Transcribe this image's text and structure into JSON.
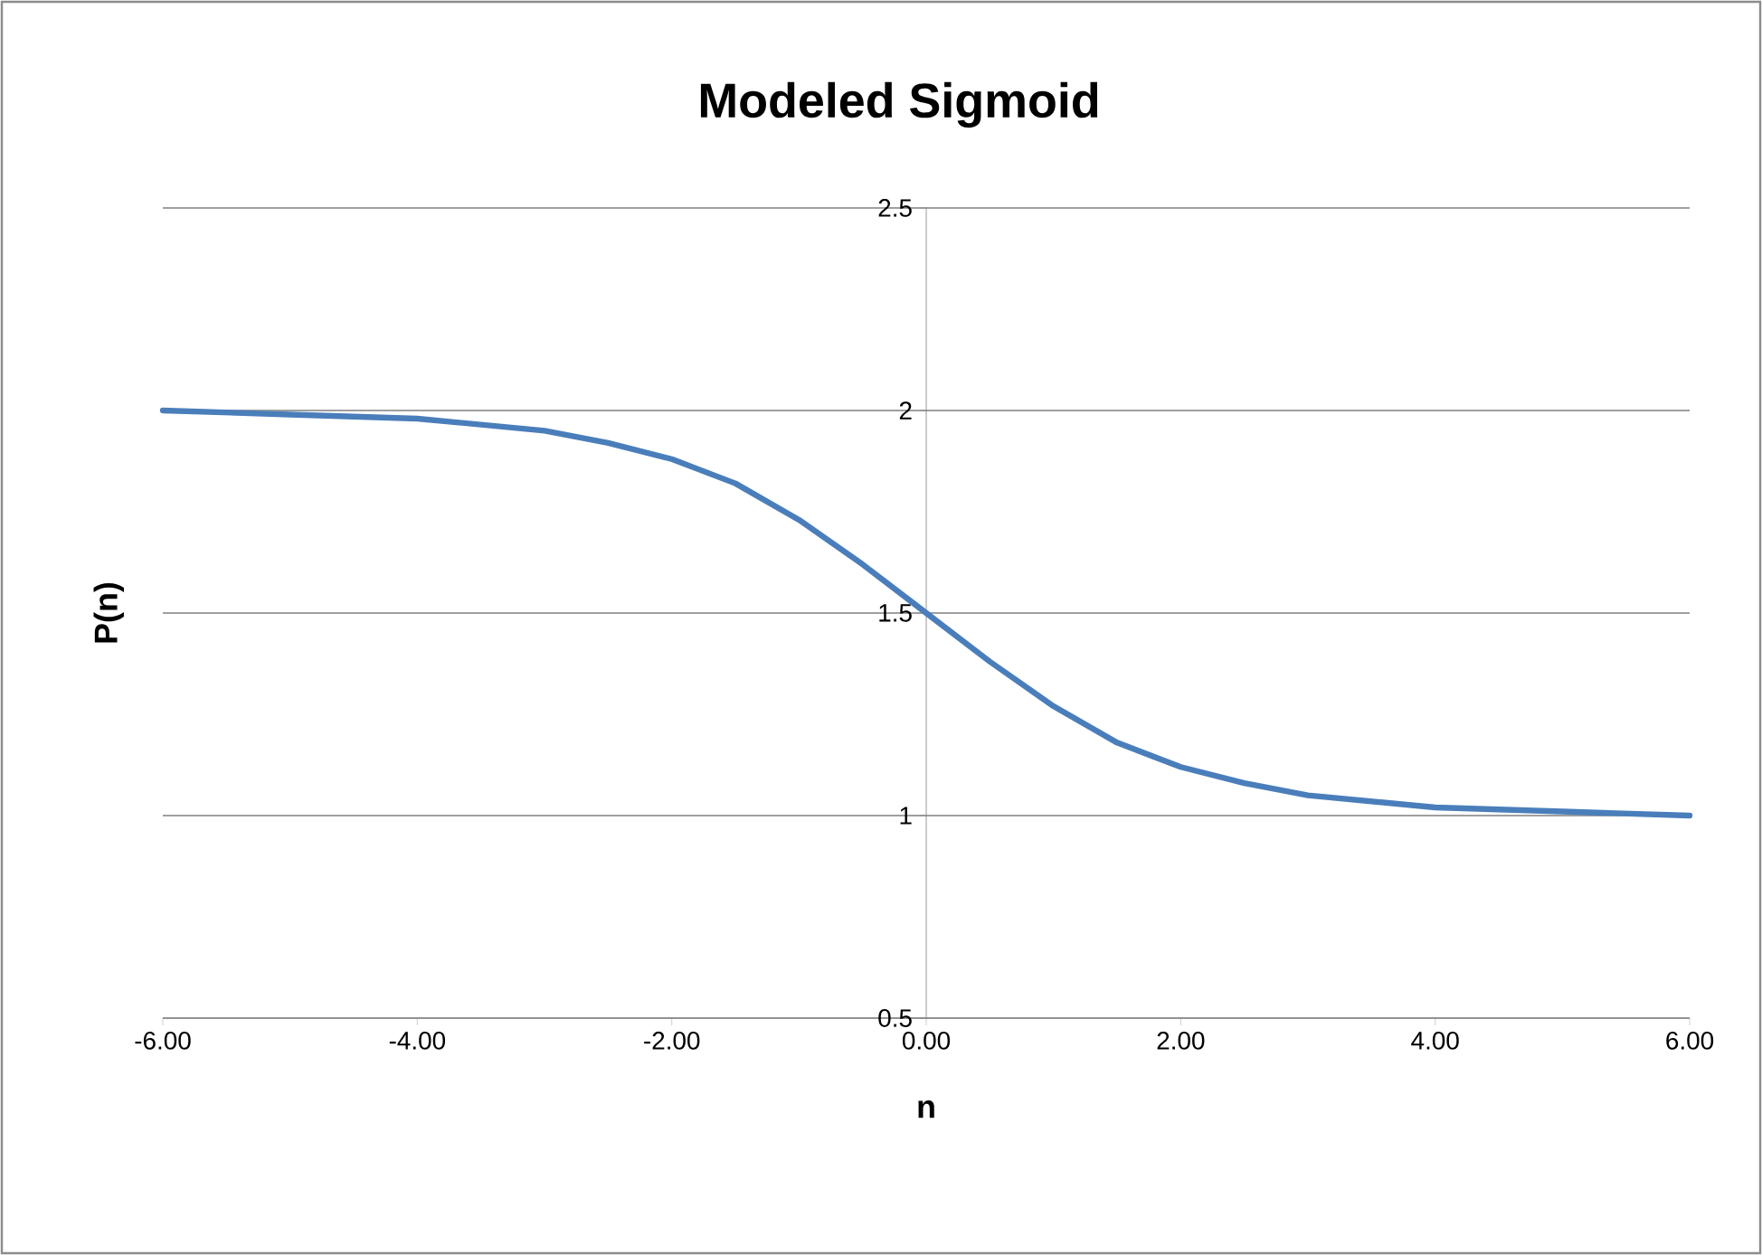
{
  "chart_data": {
    "type": "line",
    "title": "Modeled Sigmoid",
    "xlabel": "n",
    "ylabel": "P(n)",
    "x": [
      -6,
      -5,
      -4,
      -3,
      -2.5,
      -2,
      -1.5,
      -1,
      -0.5,
      0,
      0.5,
      1,
      1.5,
      2,
      2.5,
      3,
      4,
      5,
      6
    ],
    "series": [
      {
        "color": "#4a7ebb",
        "values": [
          2.0,
          1.99,
          1.98,
          1.95,
          1.92,
          1.88,
          1.82,
          1.73,
          1.62,
          1.5,
          1.38,
          1.27,
          1.18,
          1.12,
          1.08,
          1.05,
          1.02,
          1.01,
          1.0
        ]
      }
    ],
    "xlim": [
      -6,
      6
    ],
    "ylim": [
      0.5,
      2.5
    ],
    "xticks": [
      {
        "value": -6,
        "label": "-6.00"
      },
      {
        "value": -4,
        "label": "-4.00"
      },
      {
        "value": -2,
        "label": "-2.00"
      },
      {
        "value": 0,
        "label": "0.00"
      },
      {
        "value": 2,
        "label": "2.00"
      },
      {
        "value": 4,
        "label": "4.00"
      },
      {
        "value": 6,
        "label": "6.00"
      }
    ],
    "yticks": [
      0.5,
      1,
      1.5,
      2,
      2.5
    ],
    "grid": "y"
  }
}
